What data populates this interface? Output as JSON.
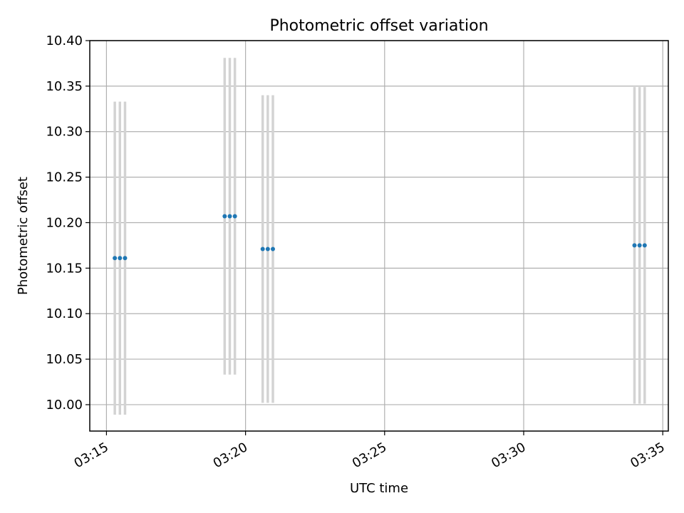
{
  "chart_data": {
    "type": "scatter",
    "title": "Photometric offset variation",
    "xlabel": "UTC time",
    "ylabel": "Photometric offset",
    "x_axis": "time",
    "xlim": [
      "03:14:24",
      "03:35:12"
    ],
    "ylim": [
      9.971,
      10.4
    ],
    "xticks": [
      "03:15",
      "03:20",
      "03:25",
      "03:30",
      "03:35"
    ],
    "yticks": [
      "10.00",
      "10.05",
      "10.10",
      "10.15",
      "10.20",
      "10.25",
      "10.30",
      "10.35",
      "10.40"
    ],
    "grid": true,
    "series": [
      {
        "marker_color": "#1f77b4",
        "errorbar_color": "#d3d3d3",
        "points": [
          {
            "x": "03:15:18",
            "y": 10.161,
            "yerr": 0.172
          },
          {
            "x": "03:15:29",
            "y": 10.161,
            "yerr": 0.172
          },
          {
            "x": "03:15:40",
            "y": 10.161,
            "yerr": 0.172
          },
          {
            "x": "03:19:15",
            "y": 10.207,
            "yerr": 0.174
          },
          {
            "x": "03:19:26",
            "y": 10.207,
            "yerr": 0.174
          },
          {
            "x": "03:19:37",
            "y": 10.207,
            "yerr": 0.174
          },
          {
            "x": "03:20:37",
            "y": 10.171,
            "yerr": 0.169
          },
          {
            "x": "03:20:48",
            "y": 10.171,
            "yerr": 0.169
          },
          {
            "x": "03:20:59",
            "y": 10.171,
            "yerr": 0.169
          },
          {
            "x": "03:33:59",
            "y": 10.175,
            "yerr": 0.174
          },
          {
            "x": "03:34:10",
            "y": 10.175,
            "yerr": 0.174
          },
          {
            "x": "03:34:21",
            "y": 10.175,
            "yerr": 0.174
          }
        ]
      }
    ]
  }
}
